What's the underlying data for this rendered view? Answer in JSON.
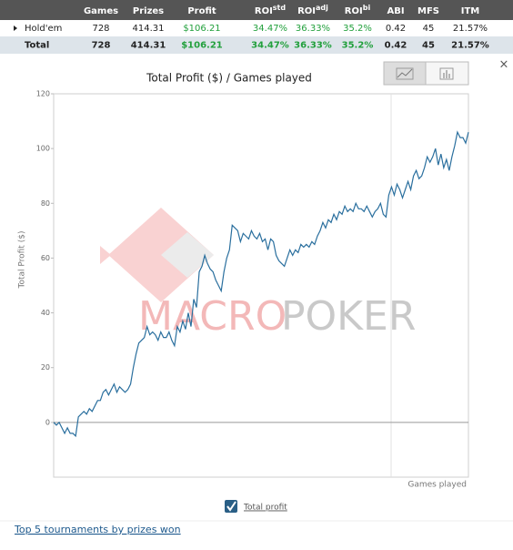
{
  "table": {
    "header": [
      {
        "text": "Games"
      },
      {
        "text": "Prizes"
      },
      {
        "text": "Profit"
      },
      {
        "text": "ROI",
        "sup": "std"
      },
      {
        "text": "ROI",
        "sup": "adj"
      },
      {
        "text": "ROI",
        "sup": "bi"
      },
      {
        "text": "ABI"
      },
      {
        "text": "MFS"
      },
      {
        "text": "ITM"
      }
    ],
    "rows": [
      [
        "Hold'em",
        "728",
        "414.31",
        "$106.21",
        "34.47%",
        "36.33%",
        "35.2%",
        "0.42",
        "45",
        "21.57%"
      ],
      [
        "Total",
        "728",
        "414.31",
        "$106.21",
        "34.47%",
        "36.33%",
        "35.2%",
        "0.42",
        "45",
        "21.57%"
      ]
    ]
  },
  "chart_data": {
    "type": "line",
    "title": "Total Profit ($) / Games played",
    "y_label": "Total Profit ($)",
    "x_label": "Games played",
    "series": [
      {
        "name": "Total profit",
        "color": "#2a6f9e",
        "values": [
          0,
          -1,
          0,
          -2,
          -4,
          -2,
          -4,
          -4,
          -5,
          2,
          3,
          4,
          3,
          5,
          4,
          6,
          8,
          8,
          11,
          12,
          10,
          12,
          14,
          11,
          13,
          12,
          11,
          12,
          14,
          20,
          25,
          29,
          30,
          31,
          35,
          32,
          33,
          32,
          30,
          33,
          31,
          31,
          33,
          30,
          28,
          35,
          33,
          37,
          34,
          40,
          35,
          45,
          42,
          55,
          57,
          61,
          58,
          56,
          55,
          52,
          50,
          48,
          55,
          60,
          63,
          72,
          71,
          70,
          66,
          69,
          68,
          67,
          70,
          68,
          67,
          69,
          66,
          67,
          63,
          67,
          66,
          61,
          59,
          58,
          57,
          60,
          63,
          61,
          63,
          62,
          65,
          64,
          65,
          64,
          66,
          65,
          68,
          70,
          73,
          71,
          74,
          73,
          76,
          74,
          77,
          76,
          79,
          77,
          78,
          77,
          80,
          78,
          78,
          77,
          79,
          77,
          75,
          77,
          78,
          80,
          76,
          75,
          83,
          86,
          83,
          87,
          85,
          82,
          85,
          88,
          85,
          90,
          92,
          89,
          90,
          93,
          97,
          95,
          97,
          100,
          94,
          98,
          93,
          96,
          92,
          97,
          101,
          106,
          104,
          104,
          102,
          106
        ]
      }
    ],
    "ylim": [
      -20,
      120
    ],
    "yticks": [
      0,
      20,
      40,
      60,
      80,
      100,
      120
    ]
  },
  "watermark": [
    "MACRO",
    "POKER"
  ],
  "close": "×",
  "link": "Top 5 tournaments by prizes won"
}
